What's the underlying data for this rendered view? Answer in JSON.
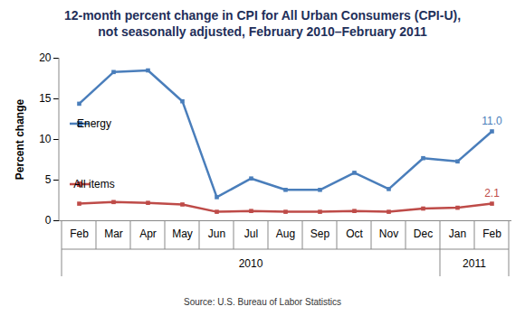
{
  "chart_data": {
    "type": "line",
    "title": [
      "12-month percent change in CPI for All Urban Consumers (CPI-U),",
      "not seasonally adjusted, February 2010–February 2011"
    ],
    "y_label": "Percent change",
    "source": "Source: U.S. Bureau of Labor Statistics",
    "categories": [
      "Feb",
      "Mar",
      "Apr",
      "May",
      "Jun",
      "Jul",
      "Aug",
      "Sep",
      "Oct",
      "Nov",
      "Dec",
      "Jan",
      "Feb"
    ],
    "groups": [
      {
        "label": "2010",
        "count": 11
      },
      {
        "label": "2011",
        "count": 2
      }
    ],
    "series": [
      {
        "name": "Energy",
        "color": "#4a7ebb",
        "marker": "square",
        "values": [
          14.4,
          18.3,
          18.5,
          14.7,
          2.9,
          5.2,
          3.8,
          3.8,
          5.9,
          3.9,
          7.7,
          7.3,
          11.0
        ],
        "value_labels": [
          null,
          null,
          null,
          null,
          null,
          null,
          null,
          null,
          null,
          null,
          null,
          null,
          "11.0"
        ]
      },
      {
        "name": "All items",
        "color": "#be4b48",
        "marker": "square",
        "values": [
          2.1,
          2.3,
          2.2,
          2.0,
          1.1,
          1.2,
          1.1,
          1.1,
          1.2,
          1.1,
          1.5,
          1.6,
          2.1
        ],
        "value_labels": [
          null,
          null,
          null,
          null,
          null,
          null,
          null,
          null,
          null,
          null,
          null,
          null,
          "2.1"
        ]
      }
    ],
    "ylim": [
      0,
      20
    ],
    "yticks": [
      0,
      5,
      10,
      15,
      20
    ],
    "grid": false,
    "legend": "left"
  }
}
